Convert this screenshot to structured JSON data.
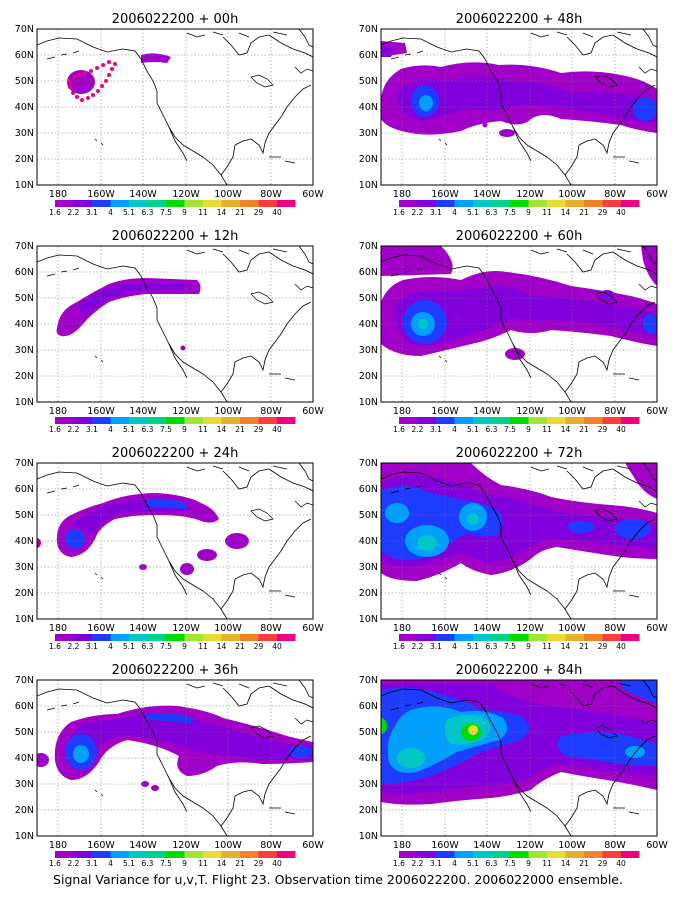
{
  "caption": "Signal Variance for u,v,T. Flight 23. Observation time 2006022200. 2006022000 ensemble.",
  "panels": [
    {
      "title": "2006022200 + 00h"
    },
    {
      "title": "2006022200 + 48h"
    },
    {
      "title": "2006022200 + 12h"
    },
    {
      "title": "2006022200 + 60h"
    },
    {
      "title": "2006022200 + 24h"
    },
    {
      "title": "2006022200 + 72h"
    },
    {
      "title": "2006022200 + 36h"
    },
    {
      "title": "2006022200 + 84h"
    }
  ],
  "axes": {
    "lat_labels": [
      "70N",
      "60N",
      "50N",
      "40N",
      "30N",
      "20N",
      "10N"
    ],
    "lon_labels": [
      "180",
      "160W",
      "140W",
      "120W",
      "100W",
      "80W",
      "60W"
    ],
    "lat_range": [
      10,
      70
    ],
    "lon_range": [
      -190,
      -60
    ],
    "grid": "dotted"
  },
  "colorbar": {
    "labels": [
      "1.6",
      "2.2",
      "3.1",
      "4",
      "5.1",
      "6.3",
      "7.5",
      "9",
      "11",
      "14",
      "21",
      "29",
      "40"
    ],
    "colors": [
      "#a000c8",
      "#8200dc",
      "#1e3cff",
      "#00a0ff",
      "#00c8c8",
      "#00d28c",
      "#00dc00",
      "#a0e632",
      "#e6dc32",
      "#e6af2d",
      "#f08228",
      "#fa3c3c",
      "#f00082"
    ]
  },
  "colors": {
    "level1": "#a000c8",
    "level2": "#8200dc",
    "level3": "#1e3cff",
    "level4": "#00a0ff",
    "level5": "#00c8c8",
    "level6": "#00dc00",
    "level7": "#e6dc32",
    "marker": "#f00082",
    "coast": "#000000"
  }
}
